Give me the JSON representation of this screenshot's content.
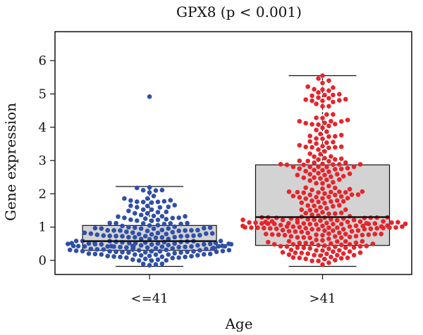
{
  "chart_data": {
    "type": "box-swarm",
    "title": "GPX8 (p < 0.001)",
    "xlabel": "Age",
    "ylabel": "Gene expression",
    "ylim": [
      -0.25,
      6.7
    ],
    "yticks": [
      0,
      1,
      2,
      3,
      4,
      5,
      6
    ],
    "categories": [
      "<=41",
      ">41"
    ],
    "colors": {
      "<=41": "#2f4fa7",
      ">41": "#e6242b",
      "box_fill": "#d3d3d3"
    },
    "groups": [
      {
        "name": "<=41",
        "whisker_low": -0.18,
        "q1": 0.3,
        "median": 0.58,
        "q3": 1.05,
        "whisker_high": 2.22,
        "max": 4.92,
        "n_points": 210
      },
      {
        "name": ">41",
        "whisker_low": -0.18,
        "q1": 0.45,
        "median": 1.3,
        "q3": 2.87,
        "whisker_high": 5.55,
        "max": 5.55,
        "n_points": 330
      }
    ]
  }
}
